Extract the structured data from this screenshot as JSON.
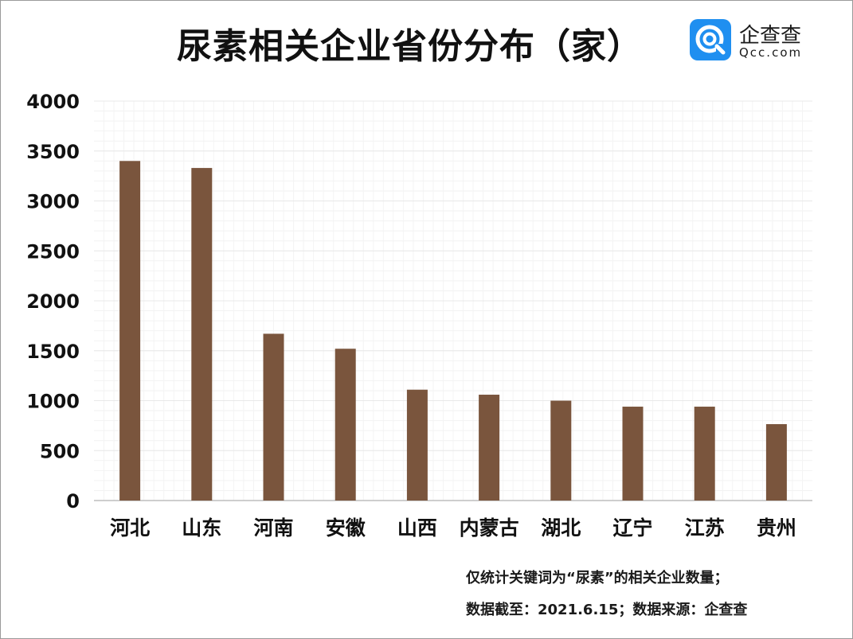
{
  "title": "尿素相关企业省份分布（家）",
  "logo": {
    "icon": "qcc-logo-icon",
    "name": "企查查",
    "domain": "Qcc.com"
  },
  "colors": {
    "bar": "#7a553d",
    "grid": "#e8e8e8",
    "axis": "#bdbdbd",
    "text": "#111111"
  },
  "chart_data": {
    "type": "bar",
    "title": "尿素相关企业省份分布（家）",
    "categories": [
      "河北",
      "山东",
      "河南",
      "安徽",
      "山西",
      "内蒙古",
      "湖北",
      "辽宁",
      "江苏",
      "贵州"
    ],
    "values": [
      3400,
      3330,
      1670,
      1520,
      1110,
      1060,
      1000,
      940,
      940,
      765
    ],
    "ylim": [
      0,
      4000
    ],
    "yticks": [
      "0",
      "500",
      "1000",
      "1500",
      "2000",
      "2500",
      "3000",
      "3500",
      "4000"
    ],
    "xlabel": "",
    "ylabel": "",
    "grid": true,
    "legend": "none"
  },
  "notes": {
    "line1": "仅统计关键词为“尿素”的相关企业数量；",
    "line2": "数据截至：2021.6.15；数据来源：企查查"
  }
}
